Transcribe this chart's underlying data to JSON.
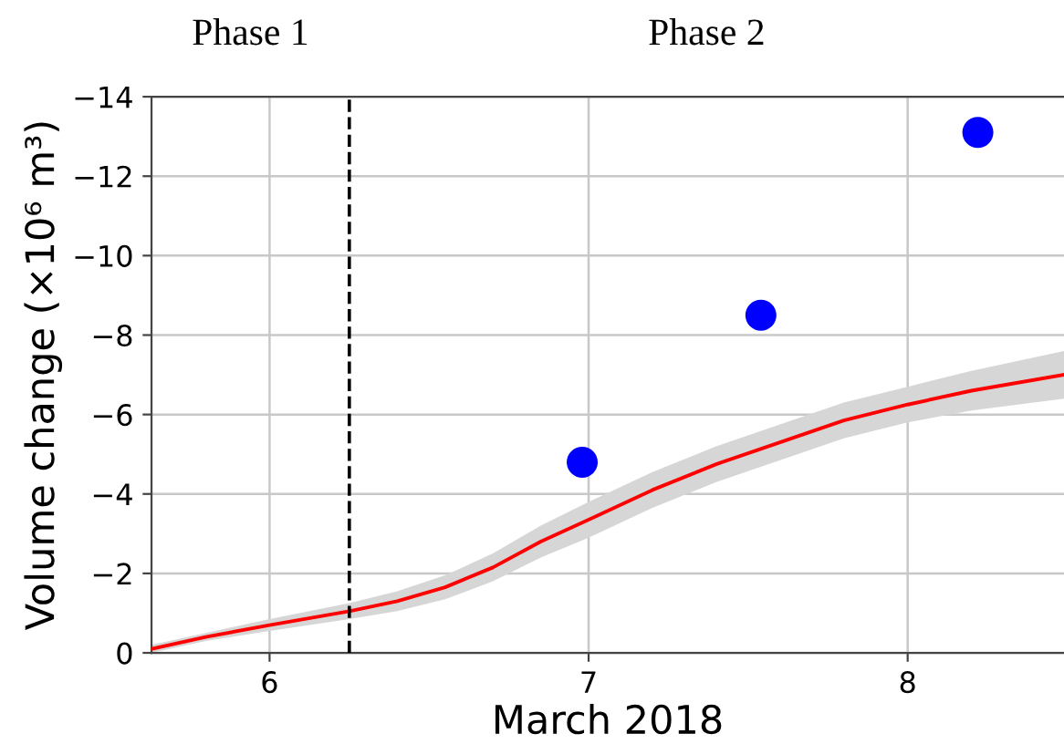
{
  "chart_data": {
    "type": "line",
    "xlabel": "March 2018",
    "ylabel": "Volume change (×10⁶ m³)",
    "annotations": [
      "Phase 1",
      "Phase 2"
    ],
    "xlim": [
      5.63,
      8.49
    ],
    "xticks": [
      6,
      7,
      8
    ],
    "ylim": [
      0,
      -14
    ],
    "yticks": [
      0,
      -2,
      -4,
      -6,
      -8,
      -10,
      -12,
      -14
    ],
    "grid": true,
    "ref_lines": [
      {
        "axis": "x",
        "value": 6.25,
        "color": "#000000",
        "line_style": "dashed"
      }
    ],
    "series": [
      {
        "color": "#ff0000",
        "marker": "none",
        "line_style": "solid",
        "x": [
          5.63,
          5.8,
          6.0,
          6.25,
          6.4,
          6.55,
          6.7,
          6.85,
          7.0,
          7.2,
          7.4,
          7.6,
          7.8,
          8.0,
          8.2,
          8.49
        ],
        "values": [
          -0.1,
          -0.4,
          -0.7,
          -1.05,
          -1.3,
          -1.65,
          -2.15,
          -2.8,
          -3.35,
          -4.1,
          -4.75,
          -5.3,
          -5.85,
          -6.25,
          -6.6,
          -7.0
        ],
        "lower": [
          -0.2,
          -0.5,
          -0.85,
          -1.25,
          -1.55,
          -1.95,
          -2.5,
          -3.2,
          -3.8,
          -4.55,
          -5.2,
          -5.75,
          -6.3,
          -6.7,
          -7.1,
          -7.6
        ],
        "upper": [
          0.0,
          -0.3,
          -0.55,
          -0.85,
          -1.05,
          -1.35,
          -1.8,
          -2.4,
          -2.9,
          -3.65,
          -4.3,
          -4.85,
          -5.4,
          -5.8,
          -6.1,
          -6.4
        ]
      },
      {
        "type": "scatter",
        "color": "#0000ff",
        "marker": "circle",
        "x": [
          6.98,
          7.54,
          8.22
        ],
        "values": [
          -4.8,
          -8.5,
          -13.1
        ]
      }
    ]
  }
}
